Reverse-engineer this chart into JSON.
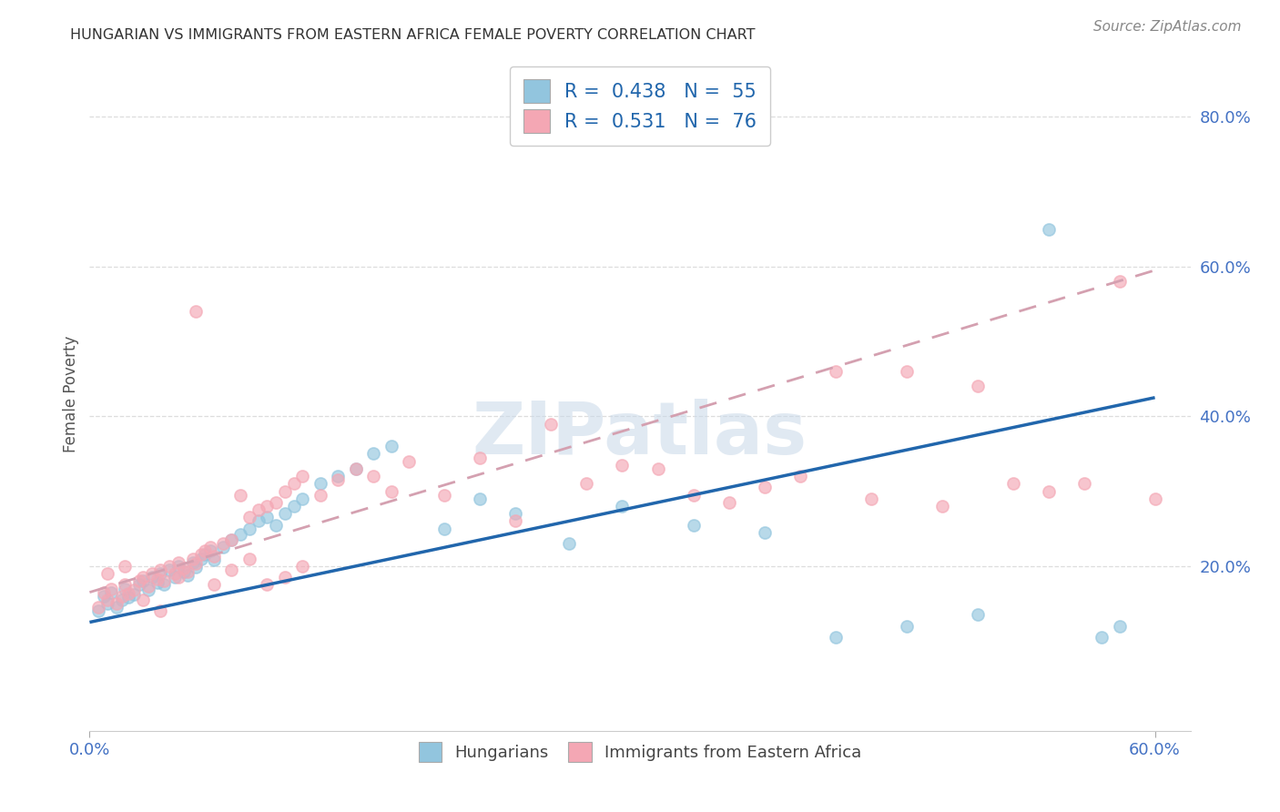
{
  "title": "HUNGARIAN VS IMMIGRANTS FROM EASTERN AFRICA FEMALE POVERTY CORRELATION CHART",
  "source": "Source: ZipAtlas.com",
  "ylabel": "Female Poverty",
  "xlim": [
    0.0,
    0.62
  ],
  "ylim": [
    -0.02,
    0.88
  ],
  "xticks": [
    0.0,
    0.6
  ],
  "xticklabels": [
    "0.0%",
    "60.0%"
  ],
  "ytick_vals": [
    0.2,
    0.4,
    0.6,
    0.8
  ],
  "yticklabels": [
    "20.0%",
    "40.0%",
    "60.0%",
    "80.0%"
  ],
  "blue_color": "#92c5de",
  "pink_color": "#f4a7b4",
  "blue_line_color": "#2166ac",
  "pink_line_color": "#d4a0b0",
  "legend_r_blue": "0.438",
  "legend_n_blue": "55",
  "legend_r_pink": "0.531",
  "legend_n_pink": "76",
  "blue_scatter_x": [
    0.005,
    0.008,
    0.01,
    0.012,
    0.015,
    0.018,
    0.02,
    0.022,
    0.025,
    0.028,
    0.03,
    0.033,
    0.035,
    0.038,
    0.04,
    0.042,
    0.045,
    0.048,
    0.05,
    0.053,
    0.055,
    0.058,
    0.06,
    0.063,
    0.065,
    0.068,
    0.07,
    0.075,
    0.08,
    0.085,
    0.09,
    0.095,
    0.1,
    0.105,
    0.11,
    0.115,
    0.12,
    0.13,
    0.14,
    0.15,
    0.16,
    0.17,
    0.2,
    0.22,
    0.24,
    0.27,
    0.3,
    0.34,
    0.38,
    0.42,
    0.46,
    0.5,
    0.54,
    0.57,
    0.58
  ],
  "blue_scatter_y": [
    0.14,
    0.16,
    0.15,
    0.165,
    0.145,
    0.155,
    0.17,
    0.158,
    0.162,
    0.175,
    0.18,
    0.168,
    0.185,
    0.178,
    0.19,
    0.175,
    0.195,
    0.185,
    0.2,
    0.192,
    0.188,
    0.205,
    0.198,
    0.21,
    0.215,
    0.22,
    0.208,
    0.225,
    0.235,
    0.242,
    0.25,
    0.26,
    0.265,
    0.255,
    0.27,
    0.28,
    0.29,
    0.31,
    0.32,
    0.33,
    0.35,
    0.36,
    0.25,
    0.29,
    0.27,
    0.23,
    0.28,
    0.255,
    0.245,
    0.105,
    0.12,
    0.135,
    0.65,
    0.105,
    0.12
  ],
  "pink_scatter_x": [
    0.005,
    0.008,
    0.01,
    0.012,
    0.015,
    0.018,
    0.02,
    0.022,
    0.025,
    0.028,
    0.03,
    0.033,
    0.035,
    0.038,
    0.04,
    0.042,
    0.045,
    0.048,
    0.05,
    0.053,
    0.055,
    0.058,
    0.06,
    0.063,
    0.065,
    0.068,
    0.07,
    0.075,
    0.08,
    0.085,
    0.09,
    0.095,
    0.1,
    0.105,
    0.11,
    0.115,
    0.12,
    0.13,
    0.14,
    0.15,
    0.16,
    0.17,
    0.18,
    0.2,
    0.22,
    0.24,
    0.26,
    0.28,
    0.3,
    0.32,
    0.34,
    0.36,
    0.38,
    0.4,
    0.42,
    0.44,
    0.46,
    0.48,
    0.5,
    0.52,
    0.54,
    0.56,
    0.58,
    0.6,
    0.01,
    0.02,
    0.03,
    0.04,
    0.05,
    0.06,
    0.07,
    0.08,
    0.09,
    0.1,
    0.11,
    0.12
  ],
  "pink_scatter_y": [
    0.145,
    0.165,
    0.155,
    0.17,
    0.15,
    0.16,
    0.175,
    0.163,
    0.168,
    0.18,
    0.185,
    0.173,
    0.19,
    0.183,
    0.195,
    0.18,
    0.2,
    0.19,
    0.205,
    0.197,
    0.193,
    0.21,
    0.203,
    0.215,
    0.22,
    0.225,
    0.213,
    0.23,
    0.235,
    0.295,
    0.265,
    0.275,
    0.28,
    0.285,
    0.3,
    0.31,
    0.32,
    0.295,
    0.315,
    0.33,
    0.32,
    0.3,
    0.34,
    0.295,
    0.345,
    0.26,
    0.39,
    0.31,
    0.335,
    0.33,
    0.295,
    0.285,
    0.305,
    0.32,
    0.46,
    0.29,
    0.46,
    0.28,
    0.44,
    0.31,
    0.3,
    0.31,
    0.58,
    0.29,
    0.19,
    0.2,
    0.155,
    0.14,
    0.185,
    0.54,
    0.175,
    0.195,
    0.21,
    0.175,
    0.185,
    0.2
  ],
  "blue_trendline": [
    0.0,
    0.6,
    0.125,
    0.425
  ],
  "pink_trendline": [
    0.0,
    0.6,
    0.165,
    0.595
  ],
  "watermark_text": "ZIPatlas",
  "watermark_color": "#c8d8e8",
  "background_color": "#ffffff",
  "grid_color": "#dddddd",
  "tick_label_color": "#4472c4",
  "title_color": "#333333",
  "source_color": "#888888",
  "ylabel_color": "#555555"
}
